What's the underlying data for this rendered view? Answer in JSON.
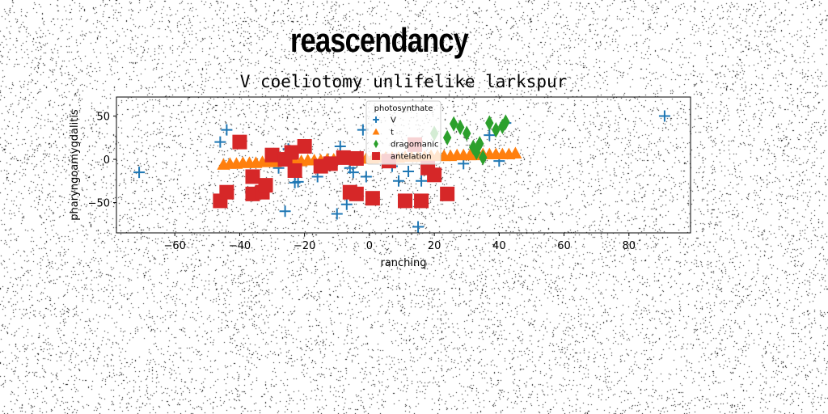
{
  "suptitle": "reascendancy",
  "chart_data": {
    "type": "scatter",
    "title": "V coeliotomy unlifelike larkspur",
    "xlabel": "ranching",
    "ylabel": "pharyngoamygdalitis",
    "xlim": [
      -78,
      99
    ],
    "ylim": [
      -85,
      72
    ],
    "xticks": [
      -60,
      -40,
      -20,
      0,
      20,
      40,
      60,
      80
    ],
    "yticks": [
      -50,
      0,
      50
    ],
    "grid": false,
    "legend": {
      "title": "photosynthate",
      "placement": "top-center",
      "entries": [
        "V",
        "t",
        "dragomanic",
        "antelation"
      ]
    },
    "series": [
      {
        "name": "V",
        "marker": "plus",
        "color": "#1f77b4",
        "points": [
          [
            -71,
            -15
          ],
          [
            -46,
            20
          ],
          [
            -44,
            34
          ],
          [
            -28,
            -10
          ],
          [
            -26,
            -60
          ],
          [
            -25,
            12
          ],
          [
            -23,
            -27
          ],
          [
            -22,
            -26
          ],
          [
            -16,
            -20
          ],
          [
            -10,
            -63
          ],
          [
            -9,
            15
          ],
          [
            -7,
            -52
          ],
          [
            -6,
            -10
          ],
          [
            -5,
            -15
          ],
          [
            -3,
            0
          ],
          [
            -1,
            -20
          ],
          [
            -2,
            34
          ],
          [
            7,
            -8
          ],
          [
            9,
            -25
          ],
          [
            12,
            -14
          ],
          [
            15,
            -78
          ],
          [
            16,
            -25
          ],
          [
            29,
            -5
          ],
          [
            37,
            28
          ],
          [
            40,
            -2
          ],
          [
            42,
            42
          ],
          [
            91,
            50
          ]
        ]
      },
      {
        "name": "t",
        "marker": "triangle",
        "color": "#ff7f0e",
        "points": [
          [
            -45,
            -6
          ],
          [
            -43,
            -5
          ],
          [
            -41,
            -5
          ],
          [
            -39,
            -4
          ],
          [
            -37,
            -4
          ],
          [
            -35,
            -4
          ],
          [
            -33,
            -3
          ],
          [
            -31,
            -3
          ],
          [
            -29,
            -3
          ],
          [
            -27,
            -2
          ],
          [
            -25,
            -2
          ],
          [
            -23,
            -2
          ],
          [
            -21,
            -2
          ],
          [
            -19,
            -1
          ],
          [
            -17,
            -1
          ],
          [
            -15,
            -1
          ],
          [
            -13,
            0
          ],
          [
            -11,
            0
          ],
          [
            -9,
            0
          ],
          [
            -7,
            0
          ],
          [
            -5,
            1
          ],
          [
            -3,
            1
          ],
          [
            -1,
            1
          ],
          [
            1,
            1
          ],
          [
            3,
            2
          ],
          [
            5,
            2
          ],
          [
            7,
            2
          ],
          [
            9,
            2
          ],
          [
            11,
            3
          ],
          [
            13,
            3
          ],
          [
            15,
            3
          ],
          [
            17,
            3
          ],
          [
            19,
            4
          ],
          [
            21,
            4
          ],
          [
            23,
            4
          ],
          [
            25,
            4
          ],
          [
            27,
            5
          ],
          [
            29,
            5
          ],
          [
            31,
            5
          ],
          [
            33,
            5
          ],
          [
            35,
            6
          ],
          [
            37,
            6
          ],
          [
            39,
            6
          ],
          [
            41,
            6
          ],
          [
            43,
            6
          ],
          [
            45,
            7
          ]
        ]
      },
      {
        "name": "dragomanic",
        "marker": "diamond",
        "color": "#2ca02c",
        "points": [
          [
            26,
            41
          ],
          [
            28,
            37
          ],
          [
            30,
            30
          ],
          [
            32,
            14
          ],
          [
            33,
            8
          ],
          [
            34,
            18
          ],
          [
            35,
            2
          ],
          [
            37,
            42
          ],
          [
            39,
            34
          ],
          [
            41,
            38
          ],
          [
            42,
            43
          ],
          [
            20,
            30
          ],
          [
            24,
            25
          ]
        ]
      },
      {
        "name": "antelation",
        "marker": "square",
        "color": "#d62728",
        "points": [
          [
            -46,
            -48
          ],
          [
            -44,
            -38
          ],
          [
            -40,
            20
          ],
          [
            -36,
            -20
          ],
          [
            -36,
            -40
          ],
          [
            -33,
            -38
          ],
          [
            -32,
            -30
          ],
          [
            -30,
            5
          ],
          [
            -26,
            0
          ],
          [
            -24,
            8
          ],
          [
            -23,
            -13
          ],
          [
            -20,
            15
          ],
          [
            -15,
            -8
          ],
          [
            -12,
            -5
          ],
          [
            -8,
            2
          ],
          [
            -6,
            -38
          ],
          [
            -4,
            -40
          ],
          [
            -4,
            1
          ],
          [
            1,
            -45
          ],
          [
            6,
            -2
          ],
          [
            11,
            -48
          ],
          [
            14,
            17
          ],
          [
            16,
            -48
          ],
          [
            18,
            -10
          ],
          [
            20,
            -18
          ],
          [
            24,
            -40
          ]
        ]
      }
    ]
  }
}
